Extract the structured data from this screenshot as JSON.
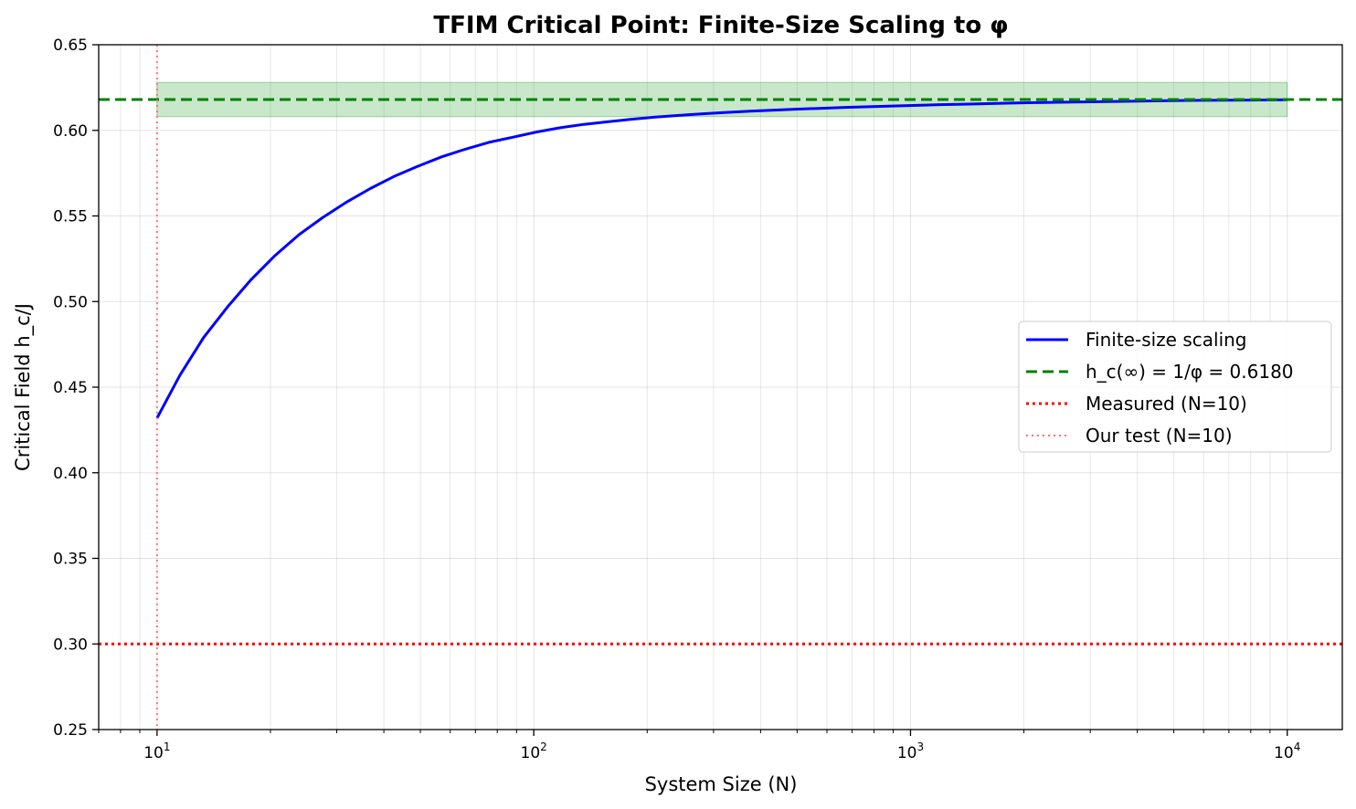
{
  "chart_data": {
    "type": "line",
    "title": "TFIM Critical Point: Finite-Size Scaling to φ",
    "xlabel": "System Size (N)",
    "ylabel": "Critical Field h_c/J",
    "xscale": "log",
    "xlim": [
      7,
      14000
    ],
    "ylim": [
      0.25,
      0.65
    ],
    "grid": true,
    "legend_position": "center-right",
    "x_ticks": [
      {
        "value": 10,
        "base": "10",
        "exp": "1"
      },
      {
        "value": 100,
        "base": "10",
        "exp": "2"
      },
      {
        "value": 1000,
        "base": "10",
        "exp": "3"
      },
      {
        "value": 10000,
        "base": "10",
        "exp": "4"
      }
    ],
    "y_ticks": [
      "0.25",
      "0.30",
      "0.35",
      "0.40",
      "0.45",
      "0.50",
      "0.55",
      "0.60",
      "0.65"
    ],
    "series": [
      {
        "name": "Finite-size scaling",
        "kind": "line",
        "color": "#0000ff",
        "style": "solid",
        "x": [
          10,
          11.5,
          13.3,
          15.4,
          17.8,
          20.6,
          23.8,
          27.5,
          31.8,
          36.8,
          42.5,
          49.2,
          56.9,
          65.8,
          76.0,
          87.9,
          101.6,
          117.5,
          135.8,
          157.0,
          181.6,
          210,
          242.8,
          280.7,
          324.5,
          375.2,
          433.9,
          501.6,
          580.0,
          670.6,
          775.4,
          896.5,
          1036.6,
          1198.5,
          1385.7,
          1602.2,
          1852.5,
          2141.9,
          2476.4,
          2863.3,
          3310.6,
          3827.8,
          4425.7,
          5117.1,
          5916.4,
          6840.7,
          7909.2,
          9144.9,
          10000
        ],
        "y": [
          0.432,
          0.457,
          0.479,
          0.497,
          0.513,
          0.527,
          0.539,
          0.549,
          0.558,
          0.566,
          0.573,
          0.579,
          0.5845,
          0.589,
          0.593,
          0.596,
          0.599,
          0.6015,
          0.6035,
          0.605,
          0.6065,
          0.6077,
          0.6087,
          0.6097,
          0.6105,
          0.6112,
          0.6118,
          0.6124,
          0.6129,
          0.6134,
          0.6138,
          0.6142,
          0.6146,
          0.615,
          0.6153,
          0.6156,
          0.6159,
          0.6162,
          0.6164,
          0.6166,
          0.6168,
          0.617,
          0.6172,
          0.6174,
          0.6175,
          0.6176,
          0.6177,
          0.6178,
          0.6179
        ]
      },
      {
        "name": "h_c(∞) = 1/φ = 0.6180",
        "kind": "hline",
        "color": "#008000",
        "style": "dashed",
        "y": 0.618
      },
      {
        "name": "Measured (N=10)",
        "kind": "hline",
        "color": "#ff0000",
        "style": "dotted",
        "y": 0.3
      },
      {
        "name": "Our test (N=10)",
        "kind": "vline",
        "color": "#ff7070",
        "style": "dotted",
        "x": 10
      }
    ],
    "band": {
      "x": [
        10,
        10000
      ],
      "y": [
        0.608,
        0.628
      ],
      "color": "#4caf50"
    }
  }
}
